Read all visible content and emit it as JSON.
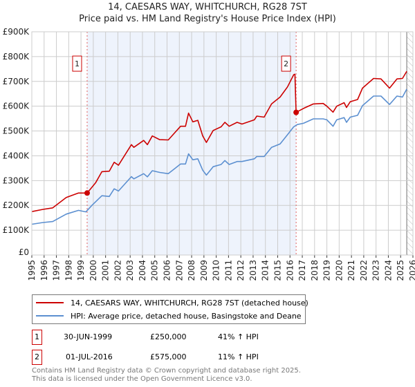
{
  "chart_data": {
    "type": "line",
    "title": "14, CAESARS WAY, WHITCHURCH, RG28 7ST",
    "subtitle": "Price paid vs. HM Land Registry's House Price Index (HPI)",
    "xlim": [
      1995,
      2026
    ],
    "ylim": [
      0,
      900000
    ],
    "x_ticks": [
      "1995",
      "1996",
      "1997",
      "1998",
      "1999",
      "2000",
      "2001",
      "2002",
      "2003",
      "2004",
      "2005",
      "2006",
      "2007",
      "2008",
      "2009",
      "2010",
      "2011",
      "2012",
      "2013",
      "2014",
      "2015",
      "2016",
      "2017",
      "2018",
      "2019",
      "2020",
      "2021",
      "2022",
      "2023",
      "2024",
      "2025",
      "2026"
    ],
    "y_ticks": [
      {
        "v": 0,
        "l": "£0"
      },
      {
        "v": 100000,
        "l": "£100K"
      },
      {
        "v": 200000,
        "l": "£200K"
      },
      {
        "v": 300000,
        "l": "£300K"
      },
      {
        "v": 400000,
        "l": "£400K"
      },
      {
        "v": 500000,
        "l": "£500K"
      },
      {
        "v": 600000,
        "l": "£600K"
      },
      {
        "v": 700000,
        "l": "£700K"
      },
      {
        "v": 800000,
        "l": "£800K"
      },
      {
        "v": 900000,
        "l": "£900K"
      }
    ],
    "grid": true,
    "shaded_range": [
      1999.5,
      2016.5
    ],
    "hatch_from": 2025.5,
    "series": [
      {
        "name": "14, CAESARS WAY, WHITCHURCH, RG28 7ST (detached house)",
        "color": "#cc0000",
        "x": [
          1995,
          1995.9,
          1996.7,
          1997.8,
          1998.8,
          1999.5,
          2000.2,
          2000.7,
          2001.3,
          2001.7,
          2002.05,
          2003.1,
          2003.3,
          2004.1,
          2004.4,
          2004.8,
          2005.4,
          2006.1,
          2007.1,
          2007.5,
          2007.75,
          2008.1,
          2008.5,
          2008.9,
          2009.2,
          2009.75,
          2010.4,
          2010.7,
          2011.05,
          2011.7,
          2012.1,
          2013.1,
          2013.3,
          2013.9,
          2014.5,
          2015.2,
          2015.8,
          2016.3,
          2016.4,
          2016.5,
          2017.1,
          2017.9,
          2018.7,
          2019.0,
          2019.5,
          2019.8,
          2020.4,
          2020.6,
          2020.9,
          2021.5,
          2021.9,
          2022.8,
          2023.4,
          2024.1,
          2024.7,
          2025.15,
          2025.5
        ],
        "y": [
          175000,
          184000,
          190000,
          232000,
          250000,
          250000,
          292000,
          336000,
          338000,
          374000,
          362000,
          445000,
          434000,
          462000,
          445000,
          480000,
          465000,
          464000,
          519000,
          519000,
          572000,
          537000,
          543000,
          480000,
          454000,
          502000,
          517000,
          535000,
          519000,
          535000,
          528000,
          545000,
          560000,
          556000,
          609000,
          637000,
          678000,
          727000,
          729000,
          575000,
          591000,
          609000,
          611000,
          600000,
          576000,
          600000,
          614000,
          595000,
          618000,
          627000,
          673000,
          712000,
          710000,
          673000,
          710000,
          712000,
          741000
        ]
      },
      {
        "name": "HPI: Average price, detached house, Basingstoke and Deane",
        "color": "#5b8fd0",
        "x": [
          1995,
          1995.9,
          1996.7,
          1997.8,
          1998.8,
          1999.4,
          1999.9,
          2000.7,
          2001.3,
          2001.7,
          2002.05,
          2003.1,
          2003.3,
          2004.1,
          2004.4,
          2004.8,
          2005.4,
          2006.1,
          2007.1,
          2007.5,
          2007.75,
          2008.1,
          2008.5,
          2008.9,
          2009.2,
          2009.75,
          2010.4,
          2010.7,
          2011.05,
          2011.7,
          2012.1,
          2013.1,
          2013.3,
          2013.9,
          2014.5,
          2015.2,
          2015.8,
          2016.3,
          2016.6,
          2017.1,
          2017.9,
          2018.7,
          2019.0,
          2019.5,
          2019.8,
          2020.4,
          2020.6,
          2020.9,
          2021.5,
          2021.9,
          2022.8,
          2023.4,
          2024.1,
          2024.7,
          2025.15,
          2025.5
        ],
        "y": [
          124000,
          131000,
          135000,
          165000,
          180000,
          174000,
          201000,
          239000,
          236000,
          267000,
          258000,
          316000,
          307000,
          328000,
          315000,
          340000,
          333000,
          328000,
          367000,
          367000,
          408000,
          384000,
          388000,
          342000,
          322000,
          356000,
          365000,
          381000,
          365000,
          377000,
          377000,
          388000,
          397000,
          397000,
          434000,
          448000,
          485000,
          517000,
          526000,
          531000,
          549000,
          549000,
          545000,
          519000,
          545000,
          554000,
          535000,
          556000,
          563000,
          602000,
          641000,
          641000,
          607000,
          641000,
          637000,
          669000
        ]
      }
    ],
    "sales": [
      {
        "label": "1",
        "x": 1999.5,
        "y": 250000,
        "date": "30-JUN-1999",
        "price": "£250,000",
        "hpi": "41% ↑ HPI"
      },
      {
        "label": "2",
        "x": 2016.5,
        "y": 575000,
        "date": "01-JUL-2016",
        "price": "£575,000",
        "hpi": "11% ↑ HPI"
      }
    ]
  },
  "footer": {
    "line1": "Contains HM Land Registry data © Crown copyright and database right 2025.",
    "line2": "This data is licensed under the Open Government Licence v3.0."
  }
}
